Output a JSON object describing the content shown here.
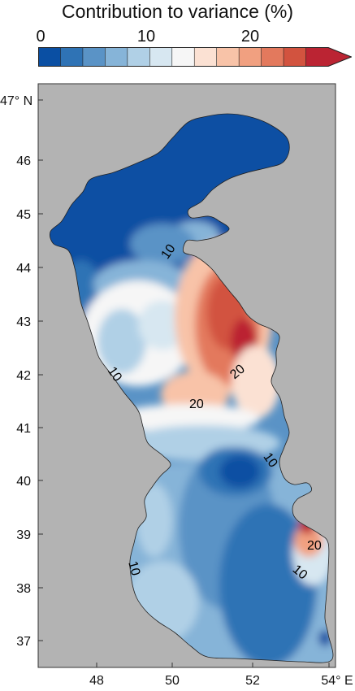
{
  "title": "Contribution to variance (%)",
  "colorbar": {
    "tick_labels": [
      "0",
      "10",
      "20"
    ],
    "colors": [
      "#0a4fa3",
      "#2f73b5",
      "#5a93c6",
      "#86b4d8",
      "#b0d0e6",
      "#d7e7f1",
      "#f6f6f6",
      "#fbe1d3",
      "#f8c3a8",
      "#f1a080",
      "#e3795d",
      "#d2533f",
      "#bb2433"
    ],
    "extend": "max"
  },
  "map": {
    "lat_labels": [
      "47° N",
      "46",
      "45",
      "44",
      "43",
      "42",
      "41",
      "40",
      "39",
      "38",
      "37"
    ],
    "lon_labels": [
      "48",
      "50",
      "52",
      "54° E"
    ],
    "land_color": "#b3b3b3",
    "contour_labels": [
      "10",
      "10",
      "20",
      "20",
      "10",
      "20",
      "10",
      "10"
    ]
  }
}
